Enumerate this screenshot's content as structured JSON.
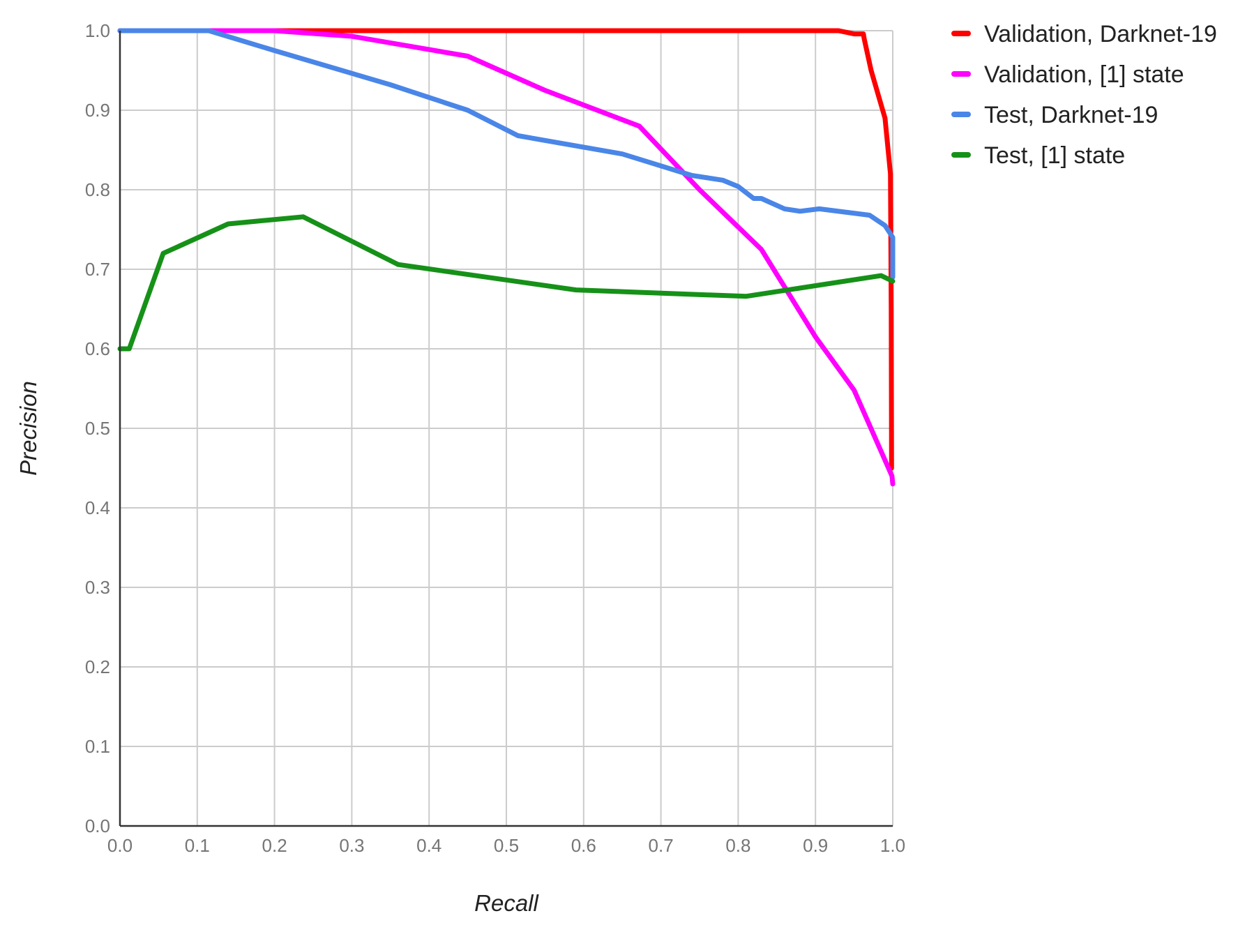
{
  "chart_data": {
    "type": "line",
    "title": "",
    "xlabel": "Recall",
    "ylabel": "Precision",
    "xlim": [
      0,
      1
    ],
    "ylim": [
      0,
      1
    ],
    "grid": true,
    "legend_position": "right",
    "x_ticks": [
      "0.0",
      "0.1",
      "0.2",
      "0.3",
      "0.4",
      "0.5",
      "0.6",
      "0.7",
      "0.8",
      "0.9",
      "1.0"
    ],
    "y_ticks": [
      "0.0",
      "0.1",
      "0.2",
      "0.3",
      "0.4",
      "0.5",
      "0.6",
      "0.7",
      "0.8",
      "0.9",
      "1.0"
    ],
    "series": [
      {
        "name": "Validation, Darknet-19",
        "color": "#ff0000",
        "points": [
          [
            0.0,
            1.0
          ],
          [
            0.5,
            1.0
          ],
          [
            0.9,
            1.0
          ],
          [
            0.93,
            1.0
          ],
          [
            0.95,
            0.996
          ],
          [
            0.962,
            0.996
          ],
          [
            0.963,
            0.99
          ],
          [
            0.972,
            0.95
          ],
          [
            0.99,
            0.89
          ],
          [
            0.997,
            0.82
          ],
          [
            0.998,
            0.65
          ],
          [
            0.9985,
            0.45
          ]
        ]
      },
      {
        "name": "Validation, [1] state",
        "color": "#ff00ff",
        "points": [
          [
            0.0,
            1.0
          ],
          [
            0.2,
            1.0
          ],
          [
            0.3,
            0.993
          ],
          [
            0.45,
            0.968
          ],
          [
            0.55,
            0.925
          ],
          [
            0.672,
            0.88
          ],
          [
            0.75,
            0.8
          ],
          [
            0.83,
            0.725
          ],
          [
            0.9,
            0.615
          ],
          [
            0.95,
            0.548
          ],
          [
            0.999,
            0.44
          ],
          [
            1.0,
            0.43
          ]
        ]
      },
      {
        "name": "Test, Darknet-19",
        "color": "#4a86e8",
        "points": [
          [
            0.0,
            1.0
          ],
          [
            0.115,
            1.0
          ],
          [
            0.2,
            0.975
          ],
          [
            0.35,
            0.932
          ],
          [
            0.45,
            0.9
          ],
          [
            0.515,
            0.868
          ],
          [
            0.65,
            0.845
          ],
          [
            0.74,
            0.818
          ],
          [
            0.78,
            0.812
          ],
          [
            0.8,
            0.804
          ],
          [
            0.82,
            0.789
          ],
          [
            0.83,
            0.789
          ],
          [
            0.86,
            0.776
          ],
          [
            0.88,
            0.773
          ],
          [
            0.905,
            0.776
          ],
          [
            0.97,
            0.768
          ],
          [
            0.99,
            0.755
          ],
          [
            1.0,
            0.74
          ],
          [
            1.0,
            0.69
          ]
        ]
      },
      {
        "name": "Test, [1] state",
        "color": "#169118",
        "points": [
          [
            0.0,
            0.6
          ],
          [
            0.012,
            0.6
          ],
          [
            0.056,
            0.72
          ],
          [
            0.14,
            0.757
          ],
          [
            0.237,
            0.766
          ],
          [
            0.36,
            0.706
          ],
          [
            0.59,
            0.674
          ],
          [
            0.81,
            0.666
          ],
          [
            0.985,
            0.692
          ],
          [
            1.0,
            0.685
          ]
        ]
      }
    ]
  }
}
